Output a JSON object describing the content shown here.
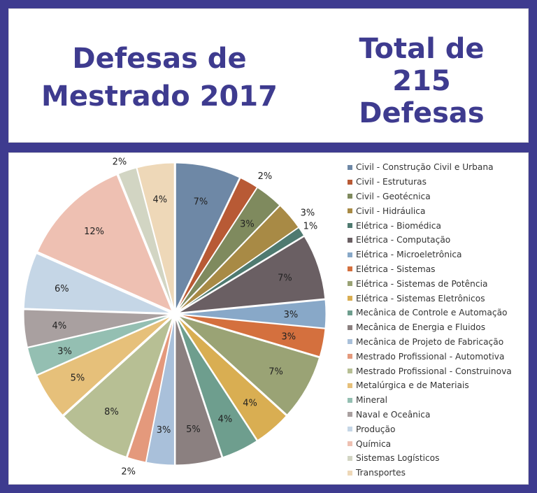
{
  "header": {
    "left_title_line1": "Defesas de",
    "left_title_line2": "Mestrado 2017",
    "right_title_line1": "Total de",
    "right_title_line2": "215",
    "right_title_line3": "Defesas"
  },
  "chart_data": {
    "type": "pie",
    "title": "",
    "legend_position": "right",
    "slices": [
      {
        "name": "Civil - Construção Civil e Urbana",
        "value": 7,
        "label": "7%",
        "color": "#6e88a6"
      },
      {
        "name": "Civil - Estruturas",
        "value": 2,
        "label": "2%",
        "color": "#b85a35"
      },
      {
        "name": "Civil - Geotécnica",
        "value": 3,
        "label": "3%",
        "color": "#7f8a5e"
      },
      {
        "name": "Civil - Hidráulica",
        "value": 3,
        "label": "3%",
        "color": "#a88a45"
      },
      {
        "name": "Elétrica - Biomédica",
        "value": 1,
        "label": "1%",
        "color": "#4f7a70"
      },
      {
        "name": "Elétrica - Computação",
        "value": 7,
        "label": "7%",
        "color": "#6a5f63"
      },
      {
        "name": "Elétrica - Microeletrônica",
        "value": 3,
        "label": "3%",
        "color": "#88a8c8"
      },
      {
        "name": "Elétrica - Sistemas",
        "value": 3,
        "label": "3%",
        "color": "#d4703e"
      },
      {
        "name": "Elétrica - Sistemas de Potência",
        "value": 7,
        "label": "7%",
        "color": "#9aa375"
      },
      {
        "name": "Elétrica - Sistemas Eletrônicos",
        "value": 4,
        "label": "4%",
        "color": "#d9ae52"
      },
      {
        "name": "Mecânica de Controle e Automação",
        "value": 4,
        "label": "4%",
        "color": "#6e9e8e"
      },
      {
        "name": "Mecânica de Energia e Fluidos",
        "value": 5,
        "label": "5%",
        "color": "#8b8080"
      },
      {
        "name": "Mecânica de Projeto de Fabricação",
        "value": 3,
        "label": "3%",
        "color": "#a9c0da"
      },
      {
        "name": "Mestrado Profissional - Automotiva",
        "value": 2,
        "label": "2%",
        "color": "#e4997c"
      },
      {
        "name": "Mestrado Profissional - Construinova",
        "value": 8,
        "label": "8%",
        "color": "#b7bf94"
      },
      {
        "name": "Metalúrgica e de Materiais",
        "value": 5,
        "label": "5%",
        "color": "#e6c07a"
      },
      {
        "name": "Mineral",
        "value": 3,
        "label": "3%",
        "color": "#94bfb2"
      },
      {
        "name": "Naval e Oceânica",
        "value": 4,
        "label": "4%",
        "color": "#a9a0a0"
      },
      {
        "name": "Produção",
        "value": 6,
        "label": "6%",
        "color": "#c5d6e6"
      },
      {
        "name": "Química",
        "value": 12,
        "label": "12%",
        "color": "#eec0b2"
      },
      {
        "name": "Sistemas Logísticos",
        "value": 2,
        "label": "2%",
        "color": "#d2d5c3"
      },
      {
        "name": "Transportes",
        "value": 4,
        "label": "4%",
        "color": "#eed8b8"
      }
    ]
  }
}
